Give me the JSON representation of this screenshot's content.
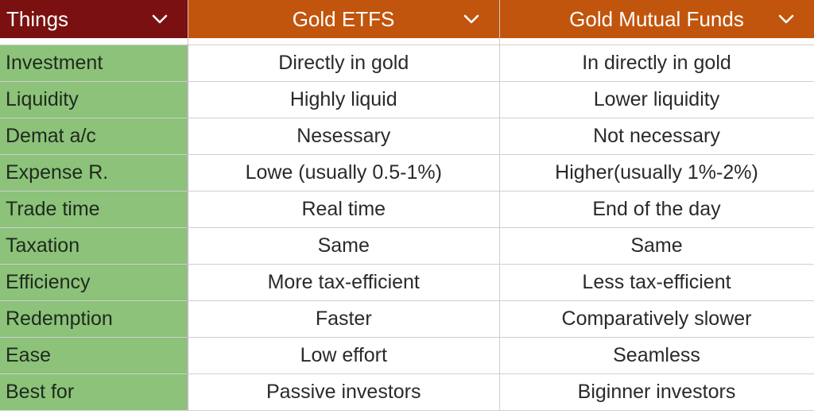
{
  "header": {
    "col_things": "Things",
    "col_etf": "Gold ETFS",
    "col_mf": "Gold Mutual Funds"
  },
  "icons": {
    "dropdown": "chevron-down-icon"
  },
  "colors": {
    "header_first": "#7a1010",
    "header_other": "#c1550d",
    "row_label_bg": "#8cc27a"
  },
  "rows": [
    {
      "label": "Investment",
      "etf": "Directly in gold",
      "mf": "In directly in gold"
    },
    {
      "label": "Liquidity",
      "etf": "Highly liquid",
      "mf": "Lower liquidity"
    },
    {
      "label": "Demat a/c",
      "etf": "Nesessary",
      "mf": "Not necessary"
    },
    {
      "label": "Expense R.",
      "etf": "Lowe (usually 0.5-1%)",
      "mf": "Higher(usually 1%-2%)"
    },
    {
      "label": "Trade time",
      "etf": "Real time",
      "mf": "End of the day"
    },
    {
      "label": "Taxation",
      "etf": "Same",
      "mf": "Same"
    },
    {
      "label": "Efficiency",
      "etf": "More tax-efficient",
      "mf": "Less tax-efficient"
    },
    {
      "label": "Redemption",
      "etf": "Faster",
      "mf": "Comparatively slower"
    },
    {
      "label": "Ease",
      "etf": "Low effort",
      "mf": "Seamless"
    },
    {
      "label": "Best for",
      "etf": "Passive investors",
      "mf": "Biginner investors"
    }
  ]
}
